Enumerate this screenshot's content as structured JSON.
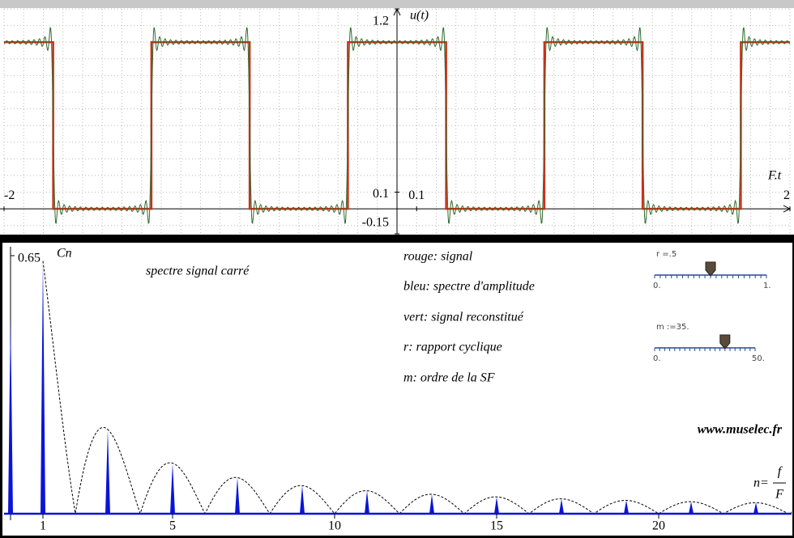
{
  "chart_data": [
    {
      "type": "line",
      "y_label": "u(t)",
      "x_label": "F.t",
      "xlim": [
        -2,
        2
      ],
      "ylim": [
        -0.15,
        1.2
      ],
      "xticks": [
        -2,
        0.1,
        2
      ],
      "yticks": [
        1.2,
        0.1,
        -0.15
      ],
      "grid": true,
      "series": [
        {
          "kind": "signal",
          "color": "#c8321a",
          "x": [
            -2,
            -1.75,
            -1.75,
            -1.25,
            -1.25,
            -0.75,
            -0.75,
            -0.25,
            -0.25,
            0.25,
            0.25,
            0.75,
            0.75,
            1.25,
            1.25,
            1.75,
            1.75,
            2
          ],
          "values": [
            1,
            1,
            0,
            0,
            1,
            1,
            0,
            0,
            1,
            1,
            0,
            0,
            1,
            1,
            0,
            0,
            1,
            1
          ]
        },
        {
          "kind": "fourier",
          "color": "#2e6b2e"
        }
      ]
    },
    {
      "type": "spectrum",
      "y_label": "Cn",
      "title": "spectre signal carré",
      "x_label": {
        "lhs": "n=",
        "num": "f",
        "den": "F"
      },
      "xlim": [
        -0.2,
        24.1
      ],
      "ylim": [
        0,
        0.65
      ],
      "xticks": [
        1,
        5,
        10,
        15,
        20
      ],
      "yticks": [
        0.65
      ],
      "color": "#0a14d8",
      "x": [
        0,
        1,
        2,
        3,
        4,
        5,
        6,
        7,
        8,
        9,
        10,
        11,
        12,
        13,
        14,
        15,
        16,
        17,
        18,
        19,
        20,
        21,
        22,
        23,
        24
      ],
      "values": [
        0.5,
        0.637,
        0,
        0.212,
        0,
        0.127,
        0,
        0.091,
        0,
        0.071,
        0,
        0.058,
        0,
        0.049,
        0,
        0.042,
        0,
        0.037,
        0,
        0.034,
        0,
        0.03,
        0,
        0.028,
        0
      ]
    }
  ],
  "notes": [
    "rouge: signal",
    "bleu: spectre d'amplitude",
    "vert: signal reconstitué",
    "r: rapport cyclique",
    "m: ordre de la SF"
  ],
  "website": "www.muselec.fr",
  "sliders": [
    {
      "label": "r =.5",
      "value": 0.5,
      "min": {
        "value": 0,
        "label": "0."
      },
      "max": {
        "value": 1,
        "label": "1."
      }
    },
    {
      "label": "m :=35.",
      "value": 35,
      "min": {
        "value": 0,
        "label": "0."
      },
      "max": {
        "value": 50,
        "label": "50."
      }
    }
  ]
}
